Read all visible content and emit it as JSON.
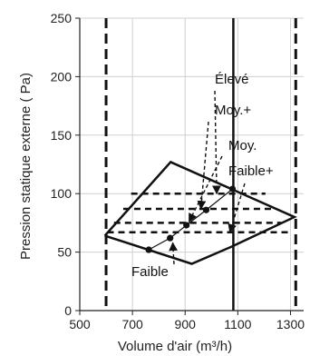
{
  "chart_data": {
    "type": "line",
    "title": "",
    "xlabel": "Volume d'air (m³/h)",
    "ylabel": "Pression statique externe ( Pa)",
    "xlim": [
      500,
      1350
    ],
    "ylim": [
      0,
      250
    ],
    "x_ticks": [
      "500",
      "700",
      "900",
      "1100",
      "1300"
    ],
    "y_ticks": [
      "0",
      "50",
      "100",
      "150",
      "200",
      "250"
    ],
    "grid": true,
    "legend": "none",
    "envelope": {
      "name": "",
      "points": [
        [
          595,
          64
        ],
        [
          845,
          127
        ],
        [
          1315,
          80
        ],
        [
          1080,
          55
        ],
        [
          925,
          40
        ],
        [
          595,
          64
        ]
      ]
    },
    "fan_curves": [
      {
        "label": "Élevé",
        "points": [
          [
            695,
            100
          ],
          [
            1205,
            100
          ]
        ]
      },
      {
        "label": "Moy.+",
        "points": [
          [
            665,
            87
          ],
          [
            1235,
            87
          ]
        ]
      },
      {
        "label": "Moy.",
        "points": [
          [
            630,
            75
          ],
          [
            1265,
            75
          ]
        ]
      },
      {
        "label": "Faible+",
        "points": [
          [
            605,
            67
          ],
          [
            1300,
            67
          ]
        ]
      }
    ],
    "operating_points": [
      {
        "label": "Élevé",
        "x": 1080,
        "y": 104
      },
      {
        "label": "Moy.+",
        "x": 980,
        "y": 86
      },
      {
        "label": "Moy.",
        "x": 905,
        "y": 73
      },
      {
        "label": "Faible+",
        "x": 843,
        "y": 62
      },
      {
        "label": "Faible",
        "x": 762,
        "y": 52
      }
    ],
    "limit_lines": [
      {
        "style": "dashed",
        "x": 600
      },
      {
        "style": "dashed",
        "x": 1320
      },
      {
        "style": "solid",
        "x": 1083
      }
    ],
    "annotations": [
      {
        "text": "Élevé",
        "arrow_to": [
          1020,
          100
        ]
      },
      {
        "text": "Moy.+",
        "arrow_to": [
          960,
          87
        ]
      },
      {
        "text": "Moy.",
        "arrow_to": [
          915,
          76
        ]
      },
      {
        "text": "Faible+",
        "arrow_to": [
          1070,
          67
        ]
      },
      {
        "text": "Faible",
        "arrow_to": [
          853,
          58
        ]
      }
    ]
  }
}
